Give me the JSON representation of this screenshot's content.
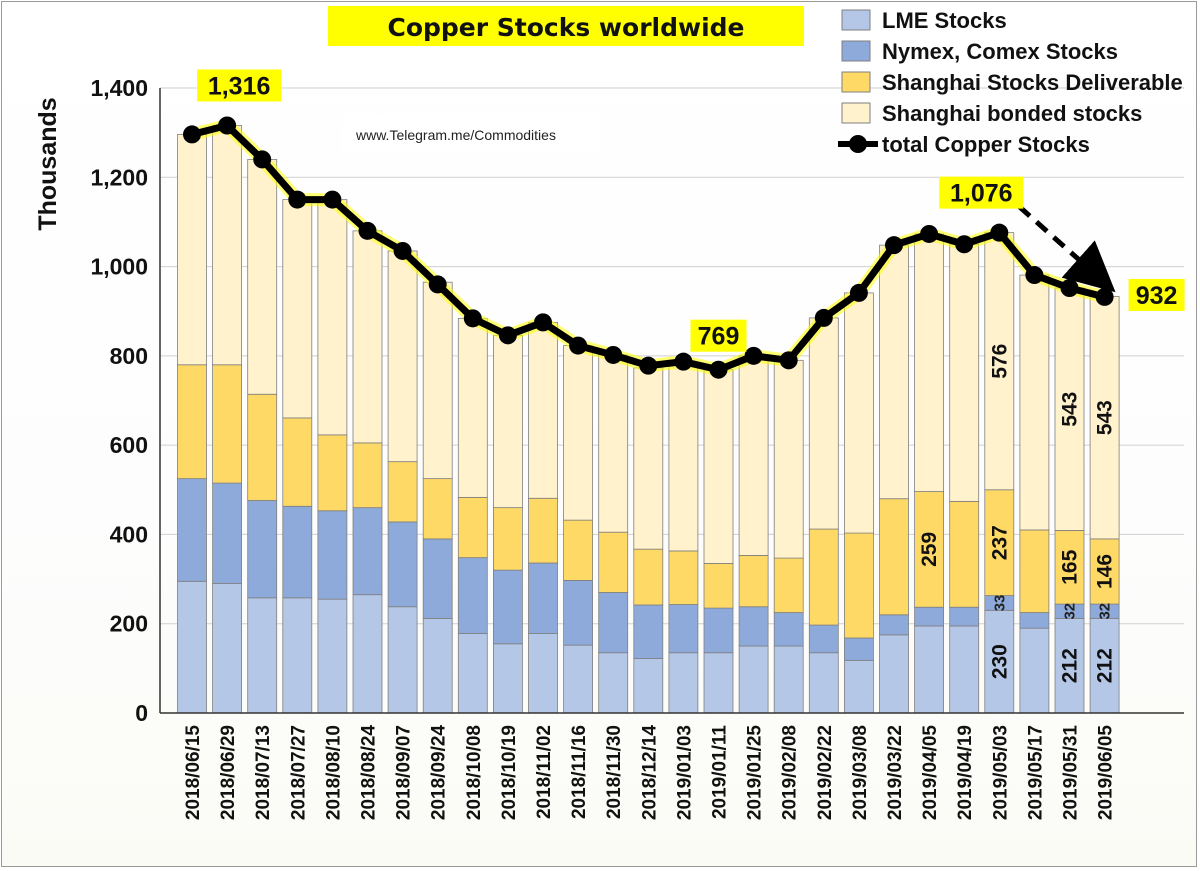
{
  "chart_data": {
    "type": "bar",
    "stacked": true,
    "title": "Copper Stocks worldwide",
    "ylabel": "Thousands",
    "xlabel": "",
    "ylim": [
      0,
      1400
    ],
    "yticks": [
      0,
      200,
      400,
      600,
      800,
      1000,
      1200,
      1400
    ],
    "ytick_labels": [
      "0",
      "200",
      "400",
      "600",
      "800",
      "1,000",
      "1,200",
      "1,400"
    ],
    "grid": "horizontal",
    "legend_position": "top-right",
    "watermark": "www.Telegram.me/Commodities",
    "categories": [
      "2018/06/15",
      "2018/06/29",
      "2018/07/13",
      "2018/07/27",
      "2018/08/10",
      "2018/08/24",
      "2018/09/07",
      "2018/09/24",
      "2018/10/08",
      "2018/10/19",
      "2018/11/02",
      "2018/11/16",
      "2018/11/30",
      "2018/12/14",
      "2019/01/03",
      "2019/01/11",
      "2019/01/25",
      "2019/02/08",
      "2019/02/22",
      "2019/03/08",
      "2019/03/22",
      "2019/04/05",
      "2019/04/19",
      "2019/05/03",
      "2019/05/17",
      "2019/05/31",
      "2019/06/05"
    ],
    "series": [
      {
        "name": "LME Stocks",
        "color": "#b4c7e7",
        "kind": "bar",
        "values": [
          295,
          290,
          258,
          258,
          255,
          265,
          238,
          212,
          178,
          155,
          178,
          152,
          135,
          122,
          135,
          135,
          150,
          150,
          135,
          118,
          175,
          195,
          195,
          230,
          190,
          212,
          212
        ]
      },
      {
        "name": "Nymex, Comex Stocks",
        "color": "#8eaadb",
        "kind": "bar",
        "values": [
          230,
          225,
          218,
          205,
          198,
          195,
          190,
          178,
          170,
          165,
          158,
          145,
          135,
          120,
          108,
          100,
          88,
          75,
          62,
          50,
          45,
          42,
          42,
          33,
          35,
          32,
          32
        ]
      },
      {
        "name": "Shanghai Stocks Deliverable",
        "color": "#ffd966",
        "kind": "bar",
        "values": [
          255,
          265,
          238,
          198,
          170,
          145,
          135,
          135,
          135,
          140,
          145,
          135,
          135,
          125,
          120,
          100,
          115,
          122,
          215,
          235,
          260,
          259,
          237,
          237,
          185,
          165,
          146
        ]
      },
      {
        "name": "Shanghai bonded stocks",
        "color": "#fff2cc",
        "kind": "bar",
        "values": [
          516,
          536,
          526,
          489,
          527,
          475,
          472,
          440,
          401,
          386,
          394,
          391,
          397,
          406,
          424,
          434,
          447,
          443,
          473,
          538,
          568,
          577,
          576,
          576,
          571,
          543,
          543
        ]
      },
      {
        "name": "total Copper Stocks",
        "color": "#000000",
        "kind": "line",
        "values": [
          1296,
          1316,
          1240,
          1150,
          1150,
          1080,
          1035,
          960,
          884,
          846,
          875,
          823,
          802,
          778,
          787,
          769,
          800,
          790,
          885,
          941,
          1048,
          1073,
          1050,
          1076,
          981,
          952,
          932
        ]
      }
    ],
    "segment_labels": [
      {
        "index": 21,
        "series": 2,
        "text": "259"
      },
      {
        "index": 23,
        "series": 0,
        "text": "230"
      },
      {
        "index": 23,
        "series": 1,
        "text": "33"
      },
      {
        "index": 23,
        "series": 2,
        "text": "237"
      },
      {
        "index": 23,
        "series": 3,
        "text": "576"
      },
      {
        "index": 25,
        "series": 0,
        "text": "212"
      },
      {
        "index": 25,
        "series": 1,
        "text": "32"
      },
      {
        "index": 25,
        "series": 2,
        "text": "165"
      },
      {
        "index": 25,
        "series": 3,
        "text": "543"
      },
      {
        "index": 26,
        "series": 0,
        "text": "212"
      },
      {
        "index": 26,
        "series": 1,
        "text": "32"
      },
      {
        "index": 26,
        "series": 2,
        "text": "146"
      },
      {
        "index": 26,
        "series": 3,
        "text": "543"
      }
    ],
    "callouts": [
      {
        "index": 1,
        "text": "1,316"
      },
      {
        "index": 15,
        "text": "769"
      },
      {
        "index": 23,
        "text": "1,076"
      },
      {
        "index": 26,
        "text": "932"
      }
    ],
    "trend_arrow": {
      "from_index": 23,
      "to_index": 26,
      "style": "dashed"
    },
    "highlight_color": "#ffff00"
  }
}
